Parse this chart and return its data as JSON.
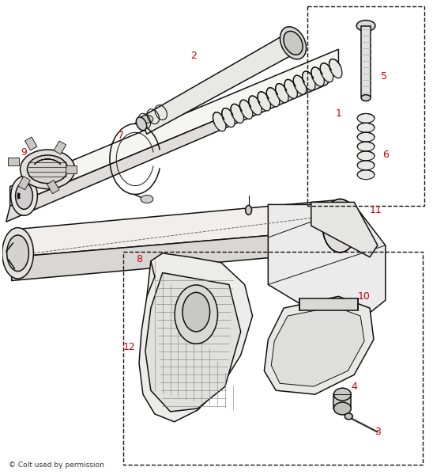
{
  "bg_color": "#ffffff",
  "label_color": "#cc0000",
  "line_color": "#111111",
  "copyright_text": "© Colt used by permission",
  "label_fontsize": 9,
  "fig_width": 5.48,
  "fig_height": 6.0
}
